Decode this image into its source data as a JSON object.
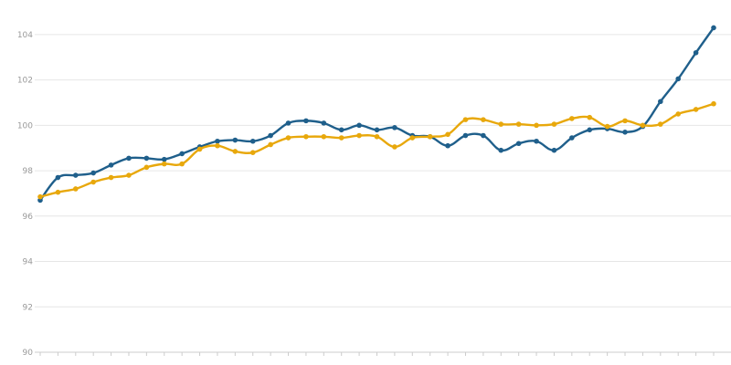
{
  "chart_data": {
    "type": "line",
    "title": "",
    "xlabel": "",
    "ylabel": "",
    "ylim": [
      90,
      104.8
    ],
    "yticks": [
      90,
      92,
      94,
      96,
      98,
      100,
      102,
      104
    ],
    "grid": true,
    "legend": "none",
    "x_tick_labels_visible": false,
    "series": [
      {
        "color": "#1f5f8b",
        "values": [
          96.7,
          97.7,
          97.8,
          97.9,
          98.25,
          98.55,
          98.55,
          98.5,
          98.75,
          99.05,
          99.3,
          99.35,
          99.3,
          99.55,
          100.1,
          100.2,
          100.1,
          99.8,
          100.0,
          99.8,
          99.9,
          99.55,
          99.5,
          99.1,
          99.55,
          99.55,
          98.9,
          99.2,
          99.3,
          98.9,
          99.45,
          99.8,
          99.85,
          99.7,
          99.95,
          101.05,
          102.05,
          103.2,
          104.3
        ]
      },
      {
        "color": "#e8a80c",
        "values": [
          96.85,
          97.05,
          97.2,
          97.5,
          97.7,
          97.8,
          98.15,
          98.3,
          98.3,
          98.95,
          99.1,
          98.85,
          98.8,
          99.15,
          99.45,
          99.5,
          99.5,
          99.45,
          99.55,
          99.5,
          99.05,
          99.45,
          99.5,
          99.6,
          100.25,
          100.25,
          100.05,
          100.05,
          100.0,
          100.05,
          100.3,
          100.35,
          99.95,
          100.2,
          100.0,
          100.05,
          100.5,
          100.7,
          100.95
        ]
      }
    ]
  }
}
